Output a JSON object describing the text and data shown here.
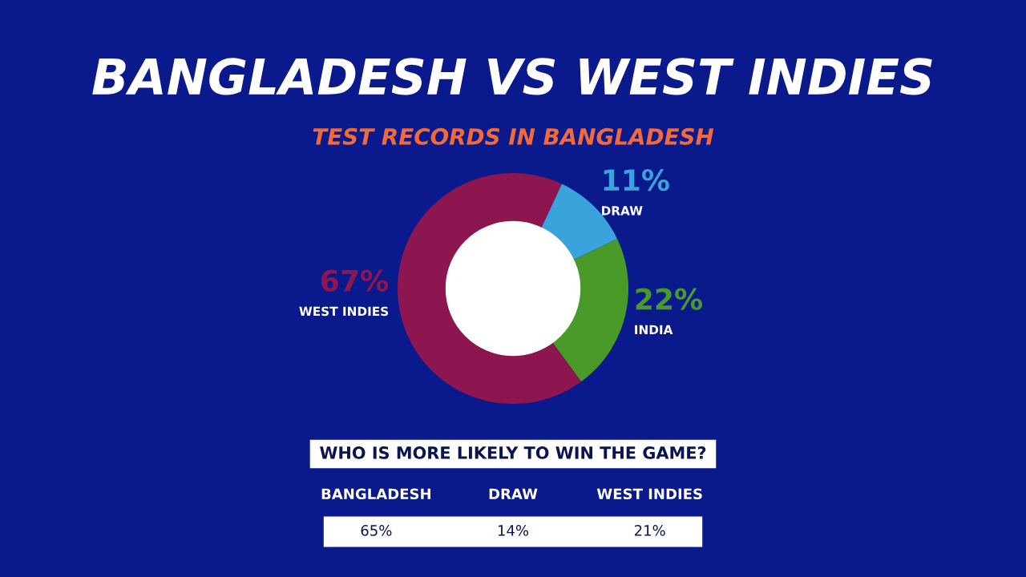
{
  "chart_data": [
    {
      "type": "donut",
      "title": "BANGLADESH VS WEST INDIES",
      "subtitle": "TEST RECORDS IN BANGLADESH",
      "categories": [
        "DRAW",
        "INDIA",
        "WEST INDIES"
      ],
      "values": [
        11,
        22,
        67
      ],
      "value_labels": [
        "11%",
        "22%",
        "67%"
      ],
      "colors": [
        "#3aa3dc",
        "#4a9a2a",
        "#8e1650"
      ]
    },
    {
      "type": "other",
      "title": "WHO IS MORE LIKELY TO WIN THE GAME?",
      "categories": [
        "BANGLADESH",
        "DRAW",
        "WEST INDIES"
      ],
      "value_labels": [
        "65%",
        "14%",
        "21%"
      ]
    }
  ]
}
